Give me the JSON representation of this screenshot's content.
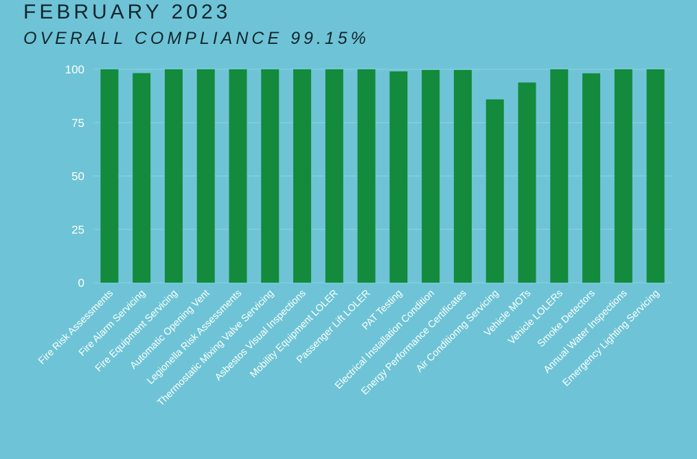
{
  "header": {
    "title": "FEBRUARY 2023",
    "subtitle": "OVERALL COMPLIANCE 99.15%"
  },
  "colors": {
    "background": "#6ec4d6",
    "bar": "#138a3c",
    "gridline": "#8fd2e0",
    "text": "#ffffff",
    "title": "#12262e"
  },
  "chart_data": {
    "type": "bar",
    "title": "FEBRUARY 2023",
    "subtitle": "OVERALL COMPLIANCE 99.15%",
    "xlabel": "",
    "ylabel": "",
    "ylim": [
      0,
      100
    ],
    "yticks": [
      0,
      25,
      50,
      75,
      100
    ],
    "grid": true,
    "legend": "none",
    "categories": [
      "Fire Risk Assessments",
      "Fire Alarm Servicing",
      "Fire Equipment Servicing",
      "Automatic Opening Vent",
      "Legionella Risk Assessments",
      "Thermostatic Mixing Valve Servicing",
      "Asbestos Visual Inspections",
      "Mobility Equipment LOLER",
      "Passenger Lift LOLER",
      "PAT Testing",
      "Electrical Installation Condition",
      "Energy Performance Certificates",
      "Air Conditionng Servicing",
      "Vehicle MOTs",
      "Vehicle LOLERs",
      "Smoke Detectors",
      "Annual Water Inspections",
      "Emergency Lighting Servicing"
    ],
    "values": [
      100,
      98.2,
      100,
      100,
      100,
      100,
      100,
      100,
      100,
      99,
      99.7,
      99.7,
      85.9,
      93.8,
      100,
      98.1,
      100,
      100
    ]
  }
}
